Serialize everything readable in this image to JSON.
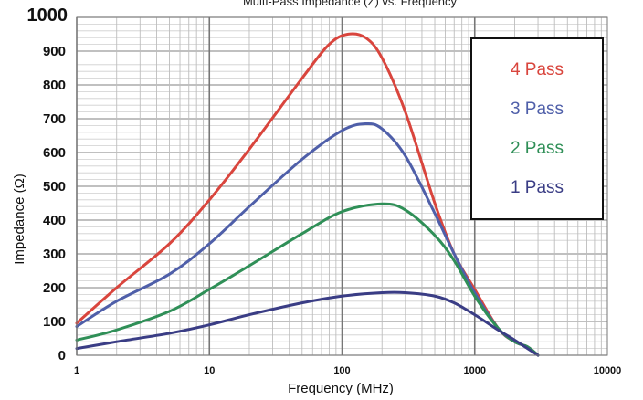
{
  "chart_data": {
    "type": "line",
    "title": "Multi-Pass Impedance (Z) vs. Frequency",
    "xlabel": "Frequency (MHz)",
    "ylabel": "Impedance (Ω)",
    "x_scale": "log",
    "xlim": [
      1,
      10000
    ],
    "ylim": [
      0,
      1000
    ],
    "x_ticks": [
      {
        "value": 1,
        "label": "1"
      },
      {
        "value": 10,
        "label": "10"
      },
      {
        "value": 100,
        "label": "100"
      },
      {
        "value": 1000,
        "label": "1000"
      },
      {
        "value": 10000,
        "label": "10000"
      }
    ],
    "y_ticks": [
      {
        "value": 0,
        "label": "0"
      },
      {
        "value": 100,
        "label": "100"
      },
      {
        "value": 200,
        "label": "200"
      },
      {
        "value": 300,
        "label": "300"
      },
      {
        "value": 400,
        "label": "400"
      },
      {
        "value": 500,
        "label": "500"
      },
      {
        "value": 600,
        "label": "600"
      },
      {
        "value": 700,
        "label": "700"
      },
      {
        "value": 800,
        "label": "800"
      },
      {
        "value": 900,
        "label": "900"
      },
      {
        "value": 1000,
        "label": "1000"
      }
    ],
    "grid": true,
    "legend_position": "top-right",
    "series": [
      {
        "name": "4 Pass",
        "color": "#d9453d",
        "points": [
          [
            1,
            95
          ],
          [
            2,
            200
          ],
          [
            5,
            330
          ],
          [
            10,
            460
          ],
          [
            20,
            610
          ],
          [
            50,
            820
          ],
          [
            80,
            920
          ],
          [
            110,
            950
          ],
          [
            150,
            940
          ],
          [
            200,
            880
          ],
          [
            300,
            720
          ],
          [
            500,
            450
          ],
          [
            700,
            300
          ],
          [
            1000,
            195
          ],
          [
            1500,
            80
          ],
          [
            2000,
            40
          ],
          [
            2500,
            25
          ],
          [
            3000,
            0
          ]
        ]
      },
      {
        "name": "3 Pass",
        "color": "#4f5fa9",
        "points": [
          [
            1,
            85
          ],
          [
            2,
            160
          ],
          [
            5,
            240
          ],
          [
            10,
            330
          ],
          [
            20,
            440
          ],
          [
            50,
            580
          ],
          [
            100,
            665
          ],
          [
            150,
            685
          ],
          [
            200,
            670
          ],
          [
            300,
            590
          ],
          [
            500,
            420
          ],
          [
            700,
            300
          ],
          [
            1000,
            185
          ],
          [
            1500,
            80
          ],
          [
            2000,
            40
          ],
          [
            2500,
            25
          ],
          [
            3000,
            0
          ]
        ]
      },
      {
        "name": "2 Pass",
        "color": "#2f8f57",
        "points": [
          [
            1,
            45
          ],
          [
            2,
            75
          ],
          [
            5,
            130
          ],
          [
            10,
            195
          ],
          [
            20,
            265
          ],
          [
            50,
            360
          ],
          [
            100,
            425
          ],
          [
            200,
            448
          ],
          [
            300,
            430
          ],
          [
            500,
            355
          ],
          [
            700,
            280
          ],
          [
            1000,
            175
          ],
          [
            1500,
            80
          ],
          [
            2000,
            40
          ],
          [
            2500,
            25
          ],
          [
            3000,
            0
          ]
        ]
      },
      {
        "name": "1 Pass",
        "color": "#3a3d85",
        "points": [
          [
            1,
            20
          ],
          [
            2,
            40
          ],
          [
            5,
            65
          ],
          [
            10,
            90
          ],
          [
            20,
            120
          ],
          [
            50,
            155
          ],
          [
            100,
            175
          ],
          [
            200,
            185
          ],
          [
            300,
            185
          ],
          [
            500,
            175
          ],
          [
            700,
            155
          ],
          [
            1000,
            120
          ],
          [
            1500,
            75
          ],
          [
            2000,
            45
          ],
          [
            2500,
            20
          ],
          [
            3000,
            0
          ]
        ]
      }
    ]
  }
}
